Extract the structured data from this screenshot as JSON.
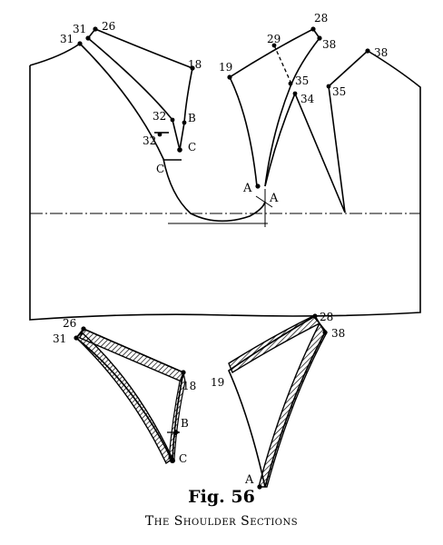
{
  "figure": {
    "number": "Fig. 56",
    "title": "The Shoulder Sections"
  },
  "labels": {
    "p31": "31",
    "p26": "26",
    "p18": "18",
    "p32": "32",
    "p32b": "32",
    "pB": "B",
    "pC": "C",
    "pCb": "C",
    "p28": "28",
    "p29": "29",
    "p19": "19",
    "p38a": "38",
    "p35a": "35",
    "p34": "34",
    "p38b": "38",
    "p35b": "35",
    "pA": "A",
    "pAb": "A",
    "s26": "26",
    "s31": "31",
    "s18": "18",
    "sB": "B",
    "sC": "C",
    "s28": "28",
    "s38": "38",
    "s19": "19",
    "sA": "A"
  }
}
